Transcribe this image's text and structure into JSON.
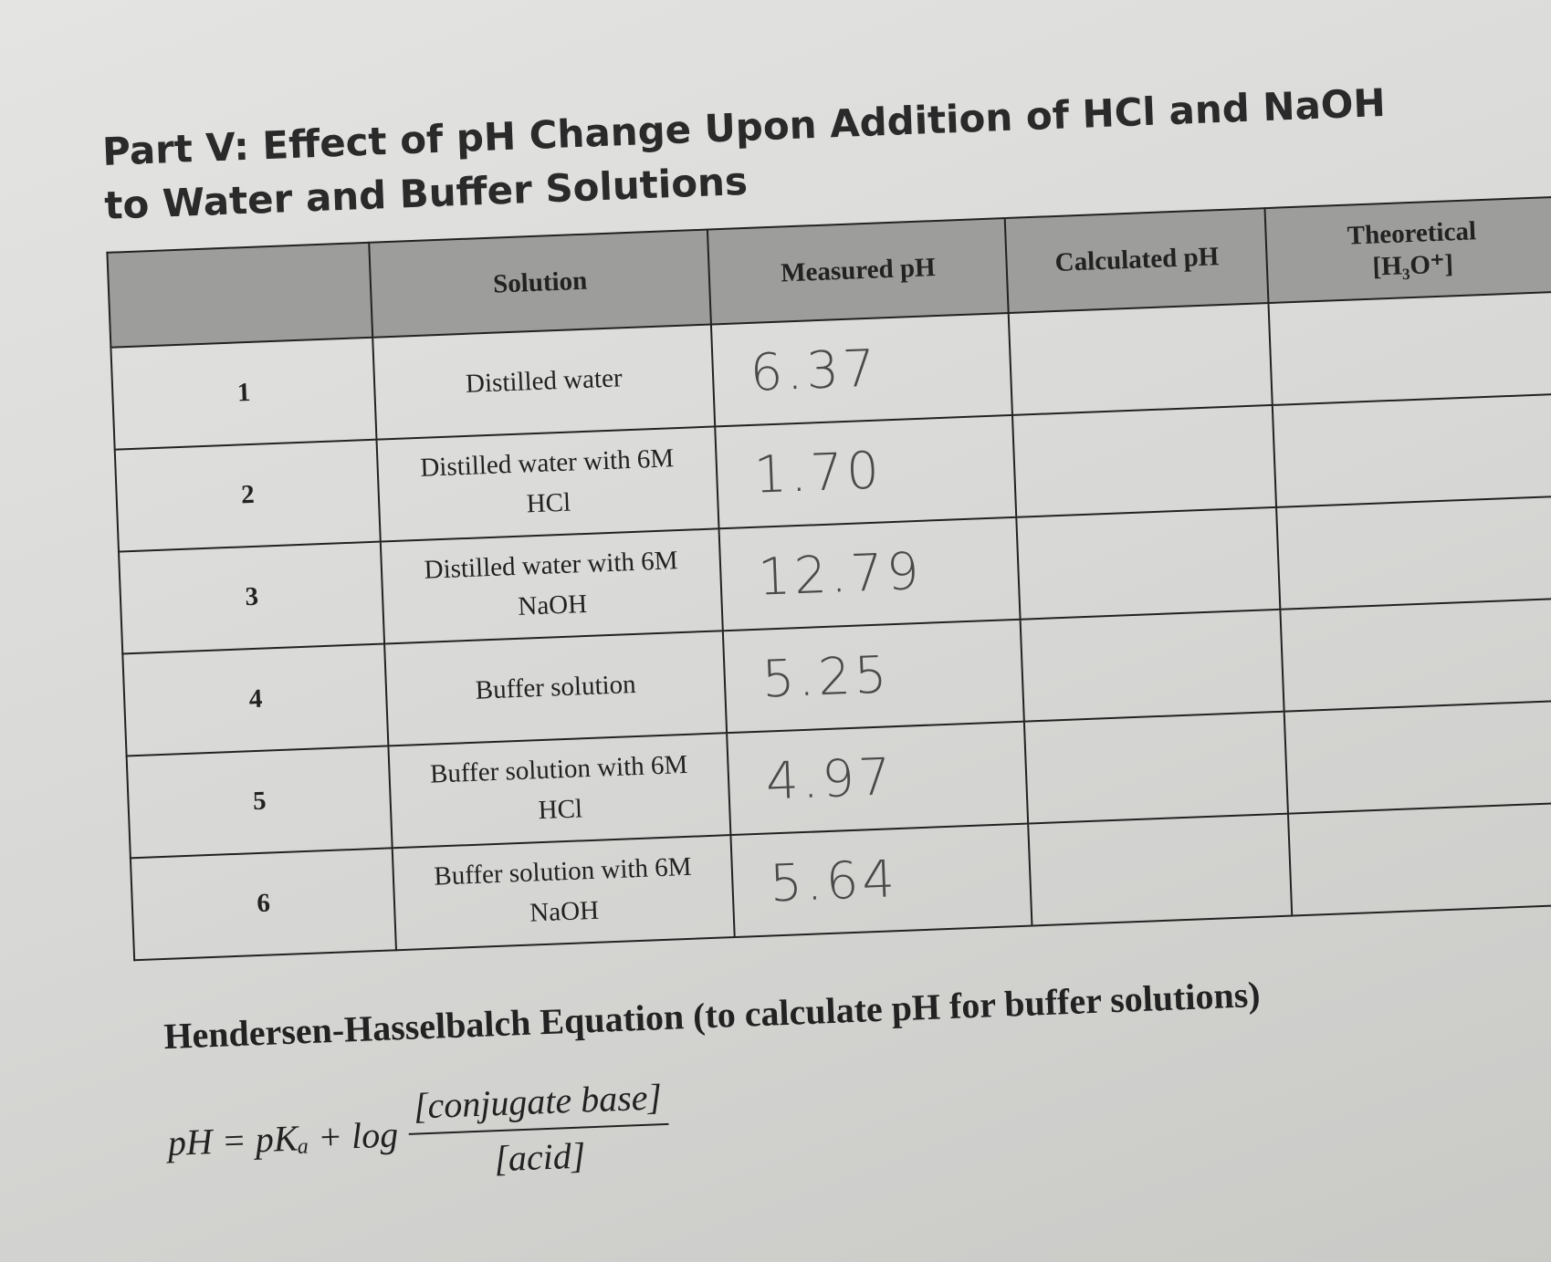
{
  "header": {
    "title": "Part V: Effect of pH Change Upon Addition of HCl and NaOH to Water and Buffer Solutions"
  },
  "table": {
    "columns": [
      "Solution",
      "Measured pH",
      "Calculated pH",
      "Theoretical [H₃O⁺]"
    ],
    "rows": [
      [
        "1",
        "Distilled water",
        "6.37"
      ],
      [
        "2",
        "Distilled water with 6M HCl",
        "1.70"
      ],
      [
        "3",
        "Distilled water with 6M NaOH",
        "12.79"
      ],
      [
        "4",
        "Buffer solution",
        "5.25"
      ],
      [
        "5",
        "Buffer solution with 6M HCl",
        "4.97"
      ],
      [
        "6",
        "Buffer solution with 6M NaOH",
        "5.64"
      ]
    ]
  },
  "equation": {
    "heading": "Hendersen-Hasselbalch Equation (to calculate pH for buffer solutions)",
    "lhs": "pH = pKₐ + log",
    "numerator": "[conjugate base]",
    "denominator": "[acid]"
  }
}
